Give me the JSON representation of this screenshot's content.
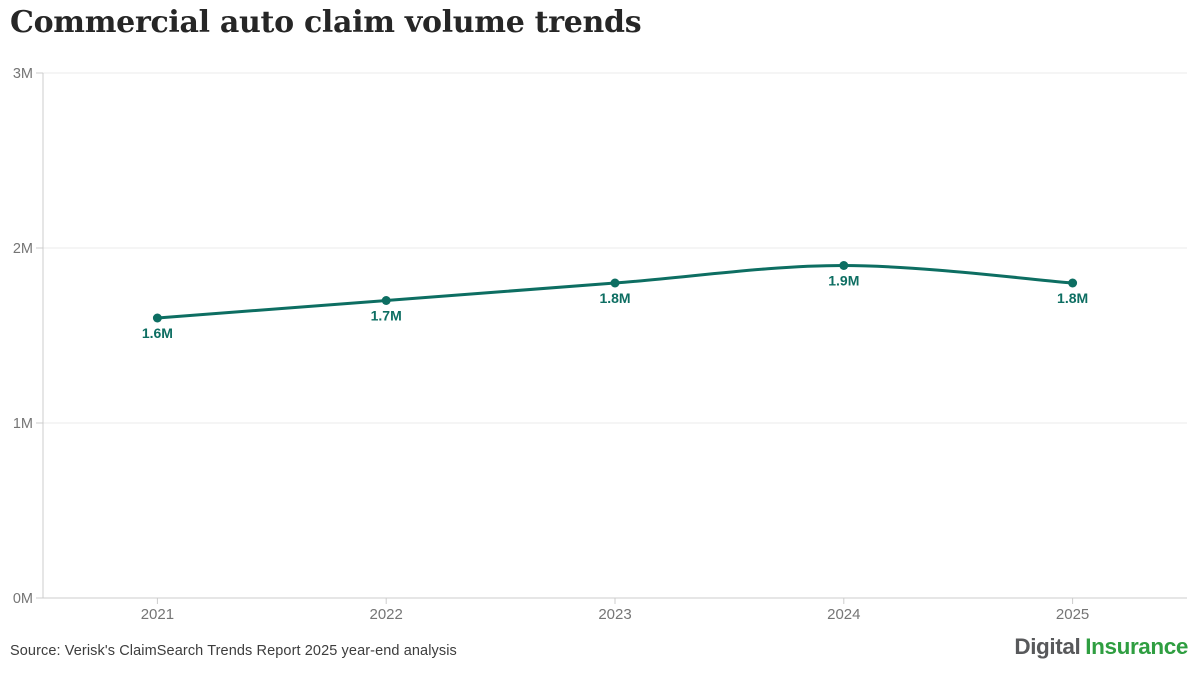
{
  "page": {
    "title": "Commercial auto claim volume trends"
  },
  "footer": {
    "source": "Source: Verisk's ClaimSearch Trends Report 2025 year-end analysis",
    "logo": {
      "part1": "Digital",
      "part2": "Insurance",
      "part1_color": "#58595b",
      "part2_color": "#2f9e41"
    }
  },
  "chart_data": {
    "type": "line",
    "title": "Commercial auto claim volume trends",
    "categories": [
      "2021",
      "2022",
      "2023",
      "2024",
      "2025"
    ],
    "values": [
      1600000,
      1700000,
      1800000,
      1900000,
      1800000
    ],
    "point_labels": [
      "1.6M",
      "1.7M",
      "1.8M",
      "1.9M",
      "1.8M"
    ],
    "xlabel": "",
    "ylabel": "",
    "ylim": [
      0,
      3000000
    ],
    "ytick_values": [
      0,
      1000000,
      2000000,
      3000000
    ],
    "ytick_labels": [
      "0M",
      "1M",
      "2M",
      "3M"
    ],
    "grid": true,
    "legend": "none",
    "colors": {
      "line": "#0d6e62",
      "point": "#0d6e62",
      "point_label": "#0d6e62",
      "grid": "#ebebeb",
      "axis": "#cccccc",
      "tick_label": "#757575"
    }
  }
}
